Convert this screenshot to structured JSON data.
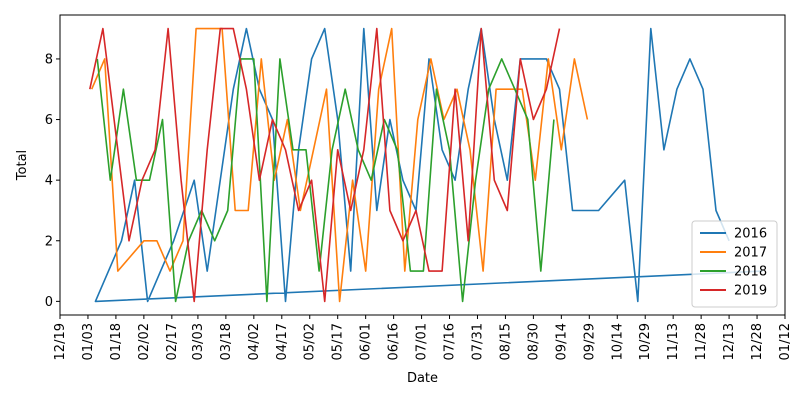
{
  "chart_data": {
    "type": "line",
    "xlabel": "Date",
    "ylabel": "Total",
    "x_ticks": [
      "12/19",
      "01/03",
      "01/18",
      "02/02",
      "02/17",
      "03/03",
      "03/18",
      "04/02",
      "04/17",
      "05/02",
      "05/17",
      "06/01",
      "06/16",
      "07/01",
      "07/16",
      "07/31",
      "08/15",
      "08/30",
      "09/14",
      "09/29",
      "10/14",
      "10/29",
      "11/13",
      "11/28",
      "12/13",
      "12/28",
      "01/12"
    ],
    "xlim": [
      "12/19",
      "01/12"
    ],
    "ylim": [
      -0.45,
      9.45
    ],
    "y_ticks": [
      0,
      2,
      4,
      6,
      8
    ],
    "grid": false,
    "legend_position": "lower-right",
    "series": [
      {
        "name": "2016",
        "color": "#1f77b4",
        "points": [
          [
            "12/31",
            1
          ],
          [
            "01/07",
            0
          ],
          [
            "01/21",
            2
          ],
          [
            "01/28",
            4
          ],
          [
            "02/04",
            0
          ],
          [
            "02/11",
            1
          ],
          [
            "02/18",
            2
          ],
          [
            "03/01",
            4
          ],
          [
            "03/08",
            1
          ],
          [
            "03/22",
            7
          ],
          [
            "03/29",
            9
          ],
          [
            "04/05",
            7
          ],
          [
            "04/12",
            6
          ],
          [
            "04/19",
            0
          ],
          [
            "04/26",
            5
          ],
          [
            "05/03",
            8
          ],
          [
            "05/10",
            9
          ],
          [
            "05/17",
            6
          ],
          [
            "05/24",
            1
          ],
          [
            "05/31",
            9
          ],
          [
            "06/07",
            3
          ],
          [
            "06/14",
            6
          ],
          [
            "06/21",
            4
          ],
          [
            "06/28",
            3
          ],
          [
            "07/05",
            8
          ],
          [
            "07/12",
            5
          ],
          [
            "07/19",
            4
          ],
          [
            "07/26",
            7
          ],
          [
            "08/02",
            9
          ],
          [
            "08/09",
            6
          ],
          [
            "08/16",
            4
          ],
          [
            "08/23",
            8
          ],
          [
            "08/30",
            8
          ],
          [
            "09/06",
            8
          ],
          [
            "09/13",
            7
          ],
          [
            "09/20",
            3
          ],
          [
            "09/27",
            3
          ],
          [
            "10/04",
            3
          ],
          [
            "10/18",
            4
          ],
          [
            "10/25",
            0
          ],
          [
            "11/01",
            9
          ],
          [
            "11/08",
            5
          ],
          [
            "11/15",
            7
          ],
          [
            "11/22",
            8
          ],
          [
            "11/29",
            7
          ],
          [
            "12/06",
            3
          ],
          [
            "12/13",
            2
          ]
        ]
      },
      {
        "name": "2017",
        "color": "#ff7f0e",
        "points": [
          [
            "01/05",
            7
          ],
          [
            "01/12",
            8
          ],
          [
            "01/19",
            1
          ],
          [
            "02/02",
            2
          ],
          [
            "02/09",
            2
          ],
          [
            "02/16",
            1
          ],
          [
            "02/23",
            2
          ],
          [
            "03/02",
            9
          ],
          [
            "03/09",
            9
          ],
          [
            "03/16",
            9
          ],
          [
            "03/23",
            3
          ],
          [
            "03/30",
            3
          ],
          [
            "04/06",
            8
          ],
          [
            "04/13",
            4
          ],
          [
            "04/20",
            6
          ],
          [
            "04/27",
            3
          ],
          [
            "05/04",
            5
          ],
          [
            "05/11",
            7
          ],
          [
            "05/18",
            0
          ],
          [
            "05/25",
            4
          ],
          [
            "06/01",
            1
          ],
          [
            "06/08",
            7
          ],
          [
            "06/15",
            9
          ],
          [
            "06/22",
            1
          ],
          [
            "06/29",
            6
          ],
          [
            "07/06",
            8
          ],
          [
            "07/13",
            6
          ],
          [
            "07/20",
            7
          ],
          [
            "07/27",
            5
          ],
          [
            "08/03",
            1
          ],
          [
            "08/10",
            7
          ],
          [
            "08/17",
            7
          ],
          [
            "08/24",
            7
          ],
          [
            "08/31",
            4
          ],
          [
            "09/07",
            8
          ],
          [
            "09/14",
            5
          ],
          [
            "09/21",
            8
          ],
          [
            "09/28",
            6
          ]
        ]
      },
      {
        "name": "2018",
        "color": "#2ca02c",
        "points": [
          [
            "01/08",
            8
          ],
          [
            "01/15",
            4
          ],
          [
            "01/22",
            7
          ],
          [
            "01/29",
            4
          ],
          [
            "02/05",
            4
          ],
          [
            "02/12",
            6
          ],
          [
            "02/19",
            0
          ],
          [
            "02/26",
            2
          ],
          [
            "03/05",
            3
          ],
          [
            "03/12",
            2
          ],
          [
            "03/19",
            3
          ],
          [
            "03/26",
            8
          ],
          [
            "04/02",
            8
          ],
          [
            "04/09",
            0
          ],
          [
            "04/16",
            8
          ],
          [
            "04/23",
            5
          ],
          [
            "04/30",
            5
          ],
          [
            "05/07",
            1
          ],
          [
            "05/14",
            5
          ],
          [
            "05/21",
            7
          ],
          [
            "05/28",
            5
          ],
          [
            "06/04",
            4
          ],
          [
            "06/11",
            6
          ],
          [
            "06/18",
            5
          ],
          [
            "06/25",
            1
          ],
          [
            "07/02",
            1
          ],
          [
            "07/09",
            7
          ],
          [
            "07/16",
            5
          ],
          [
            "07/23",
            0
          ],
          [
            "07/30",
            4
          ],
          [
            "08/06",
            7
          ],
          [
            "08/13",
            8
          ],
          [
            "08/20",
            7
          ],
          [
            "08/27",
            6
          ],
          [
            "09/03",
            1
          ],
          [
            "09/10",
            6
          ]
        ]
      },
      {
        "name": "2019",
        "color": "#d62728",
        "points": [
          [
            "01/04",
            7
          ],
          [
            "01/11",
            9
          ],
          [
            "01/25",
            2
          ],
          [
            "02/01",
            4
          ],
          [
            "02/08",
            5
          ],
          [
            "02/15",
            9
          ],
          [
            "02/22",
            4
          ],
          [
            "03/01",
            0
          ],
          [
            "03/08",
            5
          ],
          [
            "03/15",
            9
          ],
          [
            "03/22",
            9
          ],
          [
            "03/29",
            7
          ],
          [
            "04/05",
            4
          ],
          [
            "04/12",
            6
          ],
          [
            "04/19",
            5
          ],
          [
            "04/26",
            3
          ],
          [
            "05/03",
            4
          ],
          [
            "05/10",
            0
          ],
          [
            "05/17",
            5
          ],
          [
            "05/24",
            3
          ],
          [
            "05/31",
            5
          ],
          [
            "06/07",
            9
          ],
          [
            "06/14",
            3
          ],
          [
            "06/21",
            2
          ],
          [
            "06/28",
            3
          ],
          [
            "07/05",
            1
          ],
          [
            "07/12",
            1
          ],
          [
            "07/19",
            7
          ],
          [
            "07/26",
            2
          ],
          [
            "08/02",
            9
          ],
          [
            "08/09",
            4
          ],
          [
            "08/16",
            3
          ],
          [
            "08/23",
            8
          ],
          [
            "08/30",
            6
          ],
          [
            "09/06",
            7
          ],
          [
            "09/13",
            9
          ]
        ]
      }
    ]
  }
}
